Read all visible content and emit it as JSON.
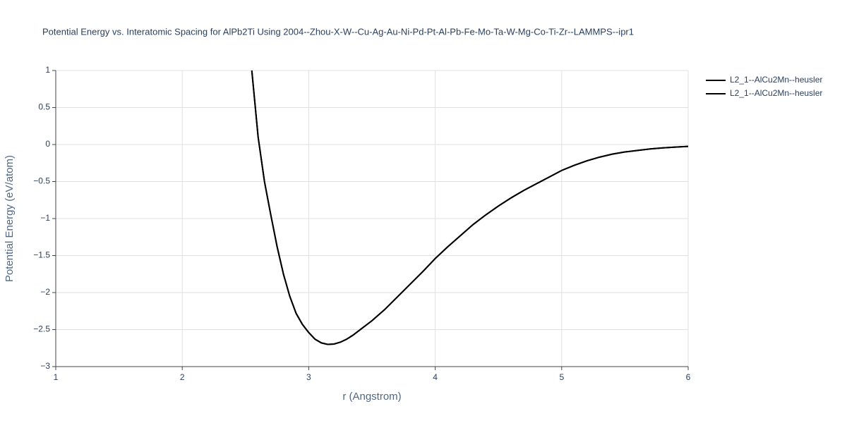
{
  "chart_data": {
    "type": "line",
    "title": "Potential Energy vs. Interatomic Spacing for AlPb2Ti Using 2004--Zhou-X-W--Cu-Ag-Au-Ni-Pd-Pt-Al-Pb-Fe-Mo-Ta-W-Mg-Co-Ti-Zr--LAMMPS--ipr1",
    "x_label": "r (Angstrom)",
    "y_label": "Potential Energy (eV/atom)",
    "x": [
      2.55,
      2.6,
      2.65,
      2.7,
      2.75,
      2.8,
      2.85,
      2.9,
      2.95,
      3.0,
      3.05,
      3.1,
      3.15,
      3.2,
      3.25,
      3.3,
      3.35,
      3.4,
      3.5,
      3.6,
      3.7,
      3.8,
      3.9,
      4.0,
      4.1,
      4.2,
      4.3,
      4.4,
      4.5,
      4.6,
      4.7,
      4.8,
      4.9,
      5.0,
      5.1,
      5.2,
      5.3,
      5.4,
      5.5,
      5.6,
      5.7,
      5.8,
      5.9,
      6.0
    ],
    "series": [
      {
        "name": "L2_1--AlCu2Mn--heusler",
        "color": "#000000",
        "values": [
          1.0,
          0.1,
          -0.5,
          -0.95,
          -1.38,
          -1.75,
          -2.05,
          -2.28,
          -2.43,
          -2.54,
          -2.63,
          -2.68,
          -2.7,
          -2.695,
          -2.67,
          -2.63,
          -2.575,
          -2.51,
          -2.38,
          -2.23,
          -2.06,
          -1.89,
          -1.72,
          -1.54,
          -1.38,
          -1.23,
          -1.08,
          -0.95,
          -0.83,
          -0.72,
          -0.62,
          -0.53,
          -0.44,
          -0.35,
          -0.28,
          -0.22,
          -0.17,
          -0.13,
          -0.1,
          -0.08,
          -0.06,
          -0.045,
          -0.035,
          -0.025
        ]
      },
      {
        "name": "L2_1--AlCu2Mn--heusler",
        "color": "#000000",
        "values": [
          1.0,
          0.1,
          -0.5,
          -0.95,
          -1.38,
          -1.75,
          -2.05,
          -2.28,
          -2.43,
          -2.54,
          -2.63,
          -2.68,
          -2.7,
          -2.695,
          -2.67,
          -2.63,
          -2.575,
          -2.51,
          -2.38,
          -2.23,
          -2.06,
          -1.89,
          -1.72,
          -1.54,
          -1.38,
          -1.23,
          -1.08,
          -0.95,
          -0.83,
          -0.72,
          -0.62,
          -0.53,
          -0.44,
          -0.35,
          -0.28,
          -0.22,
          -0.17,
          -0.13,
          -0.1,
          -0.08,
          -0.06,
          -0.045,
          -0.035,
          -0.025
        ]
      }
    ],
    "xlim": [
      1,
      6
    ],
    "xticks": [
      1,
      2,
      3,
      4,
      5,
      6
    ],
    "ylim": [
      -3,
      1
    ],
    "yticks": [
      {
        "value": -3,
        "label": "−3"
      },
      {
        "value": -2.5,
        "label": "−2.5"
      },
      {
        "value": -2,
        "label": "−2"
      },
      {
        "value": -1.5,
        "label": "−1.5"
      },
      {
        "value": -1,
        "label": "−1"
      },
      {
        "value": -0.5,
        "label": "−0.5"
      },
      0,
      0.5,
      1
    ],
    "grid": true,
    "legend": "top-right"
  }
}
